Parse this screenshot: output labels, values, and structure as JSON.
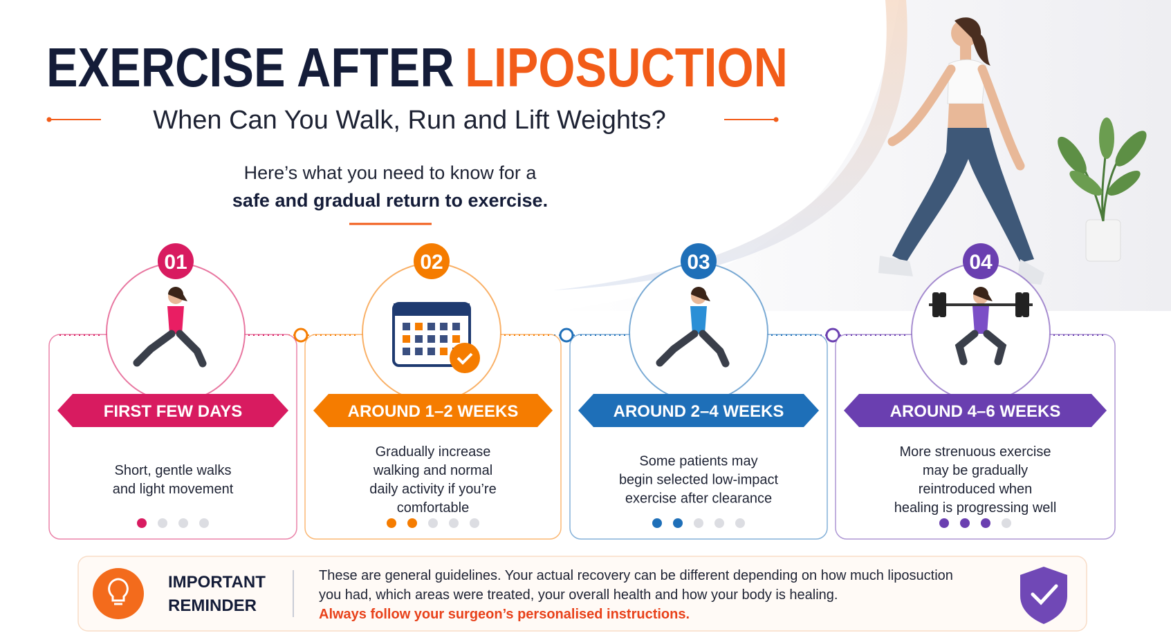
{
  "title": {
    "part1": "EXERCISE AFTER",
    "part2": "LIPOSUCTION"
  },
  "subtitle": "When Can You Walk, Run and Lift Weights?",
  "intro": {
    "line1": "Here’s what you need to know for a",
    "line2": "safe and gradual return to exercise."
  },
  "steps": [
    {
      "number": "01",
      "label": "FIRST FEW DAYS",
      "color": "#d81b60",
      "lines": [
        "Short, gentle walks",
        "and light movement"
      ]
    },
    {
      "number": "02",
      "label": "AROUND 1–2 WEEKS",
      "color": "#f57c00",
      "lines": [
        "Gradually increase",
        "walking and normal",
        "daily activity if you’re",
        "comfortable"
      ]
    },
    {
      "number": "03",
      "label": "AROUND 2–4 WEEKS",
      "color": "#1e6fb8",
      "lines": [
        "Some patients may",
        "begin selected low-impact",
        "exercise after clearance"
      ]
    },
    {
      "number": "04",
      "label": "AROUND 4–6 WEEKS",
      "color": "#6a3fb0",
      "lines": [
        "More strenuous exercise",
        "may be gradually",
        "reintroduced when",
        "healing is progressing well"
      ]
    }
  ],
  "reminder": {
    "title": [
      "IMPORTANT",
      "REMINDER"
    ],
    "lines": [
      "These are general guidelines. Your actual recovery can be different depending on how much liposuction",
      "you had, which areas were treated, your overall health and how your body is healing."
    ],
    "emphasis": "Always follow your surgeon’s personalised instructions."
  }
}
